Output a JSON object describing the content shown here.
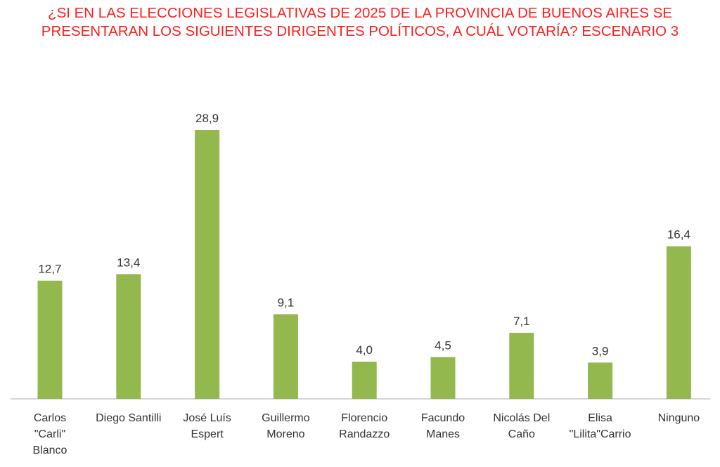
{
  "title_lines": [
    "¿SI EN LAS ELECCIONES LEGISLATIVAS DE 2025 DE LA PROVINCIA DE BUENOS AIRES SE",
    "PRESENTARAN LOS SIGUIENTES DIRIGENTES POLÍTICOS, A CUÁL VOTARÍA? ESCENARIO 3"
  ],
  "colors": {
    "title": "#ff1f1f",
    "bar": "#93b84d",
    "axis": "#c8c8c8",
    "text": "#333333"
  },
  "chart_data": {
    "type": "bar",
    "title": "¿SI EN LAS ELECCIONES LEGISLATIVAS DE 2025 DE LA PROVINCIA DE BUENOS AIRES SE PRESENTARAN LOS SIGUIENTES DIRIGENTES POLÍTICOS, A CUÁL VOTARÍA? ESCENARIO 3",
    "categories": [
      [
        "Carlos",
        "\"Carli\"",
        "Blanco"
      ],
      [
        "Diego Santilli"
      ],
      [
        "José Luís",
        "Espert"
      ],
      [
        "Guillermo",
        "Moreno"
      ],
      [
        "Florencio",
        "Randazzo"
      ],
      [
        "Facundo",
        "Manes"
      ],
      [
        "Nicolás Del",
        "Caño"
      ],
      [
        "Elisa",
        "\"Lilita\"Carrio"
      ],
      [
        "Ninguno"
      ]
    ],
    "values": [
      12.7,
      13.4,
      28.9,
      9.1,
      4.0,
      4.5,
      7.1,
      3.9,
      16.4
    ],
    "value_labels": [
      "12,7",
      "13,4",
      "28,9",
      "9,1",
      "4,0",
      "4,5",
      "7,1",
      "3,9",
      "16,4"
    ],
    "xlabel": "",
    "ylabel": "",
    "ylim": [
      0,
      30
    ],
    "grid": false,
    "legend": "none"
  }
}
